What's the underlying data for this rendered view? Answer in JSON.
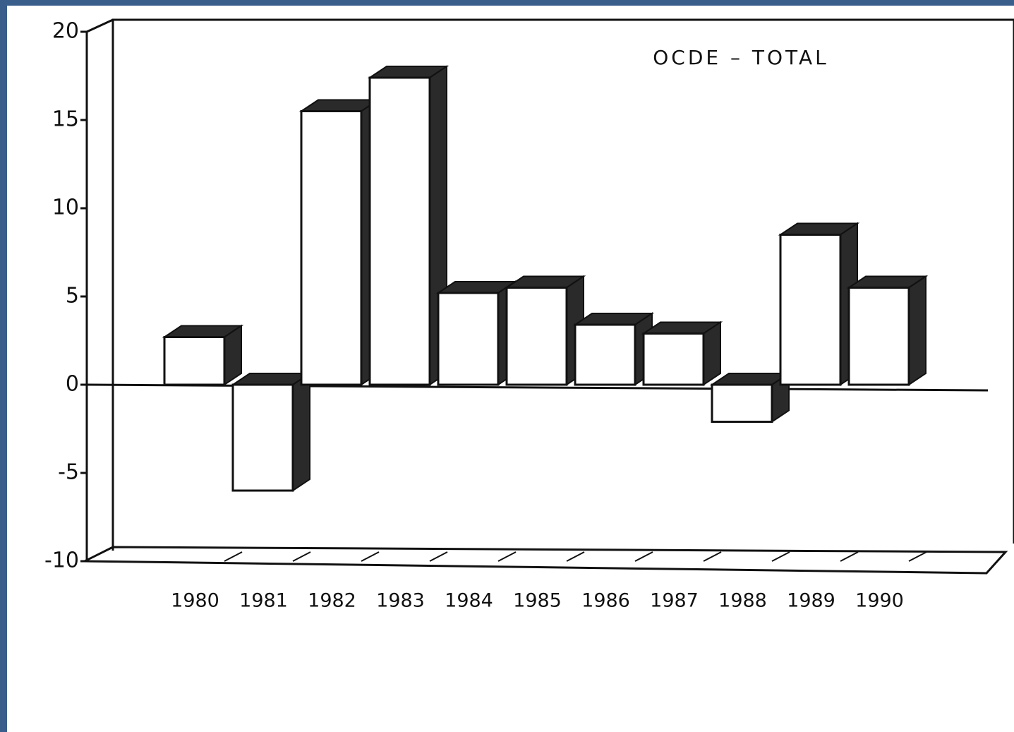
{
  "chart_data": {
    "type": "bar3d",
    "title": "OCDE – TOTAL",
    "categories": [
      "1980",
      "1981",
      "1982",
      "1983",
      "1984",
      "1985",
      "1986",
      "1987",
      "1988",
      "1989",
      "1990"
    ],
    "values": [
      2.7,
      -6,
      15.5,
      17.4,
      5.2,
      5.5,
      3.4,
      2.9,
      -2.1,
      8.5,
      5.5
    ],
    "color": "#ffffff",
    "side_color": "#2a2a2a",
    "ylim": [
      -10,
      20
    ],
    "yticks": [
      -10,
      -5,
      0,
      5,
      10,
      15,
      20
    ],
    "grid": false
  }
}
